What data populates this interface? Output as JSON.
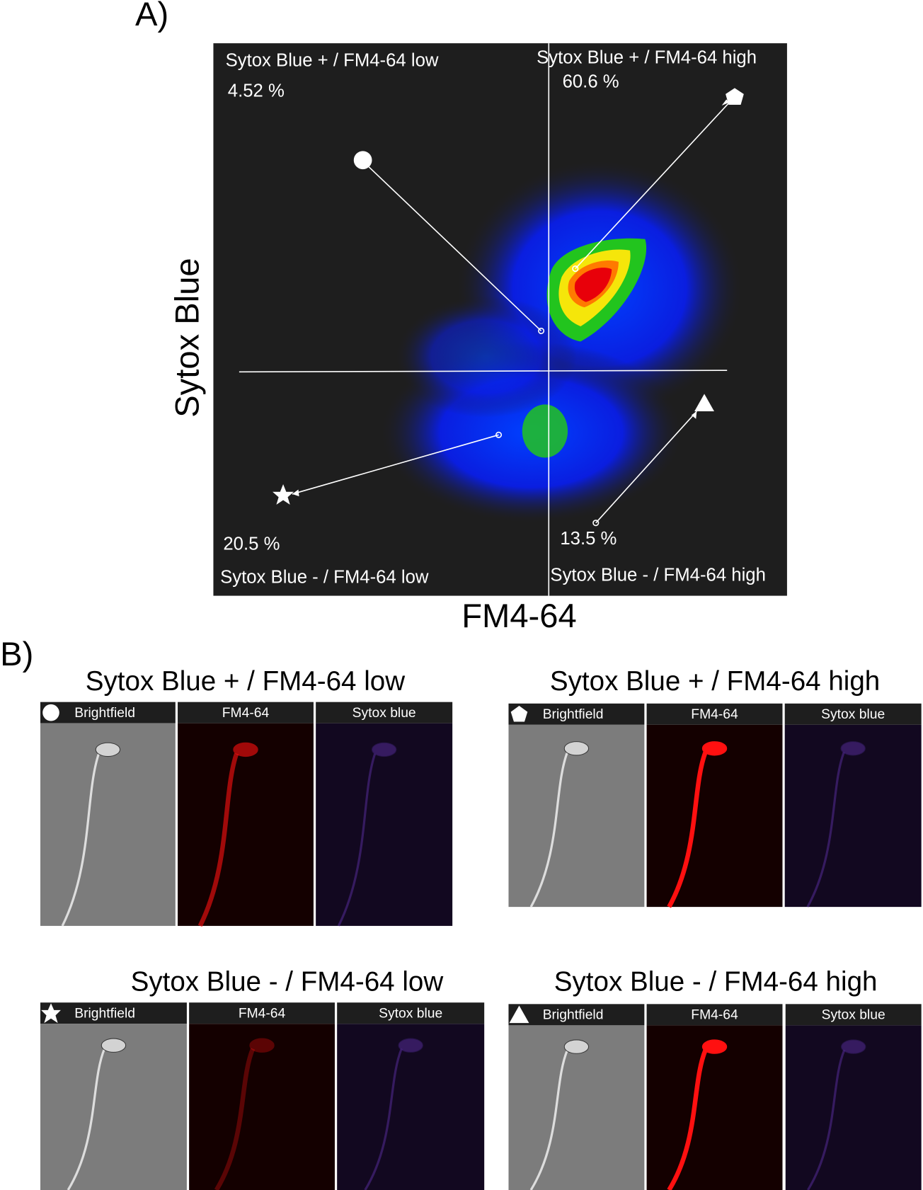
{
  "panel_a": {
    "label": "A)",
    "x_axis": "FM4-64",
    "y_axis": "Sytox Blue",
    "quadrants": [
      {
        "name": "Sytox Blue + / FM4-64 low",
        "percent": "4.52 %"
      },
      {
        "name": "Sytox Blue + / FM4-64 high",
        "percent": "60.6 %"
      },
      {
        "name": "Sytox Blue - / FM4-64 low",
        "percent": "20.5 %"
      },
      {
        "name": "Sytox Blue - / FM4-64 high",
        "percent": "13.5 %"
      }
    ]
  },
  "panel_b": {
    "label": "B)",
    "groups": [
      {
        "title": "Sytox Blue + / FM4-64 low",
        "images": [
          "Brightfield",
          "FM4-64",
          "Sytox blue"
        ]
      },
      {
        "title": "Sytox Blue + / FM4-64 high",
        "images": [
          "Brightfield",
          "FM4-64",
          "Sytox blue"
        ]
      },
      {
        "title": "Sytox Blue - / FM4-64 low",
        "images": [
          "Brightfield",
          "FM4-64",
          "Sytox blue"
        ]
      },
      {
        "title": "Sytox Blue - / FM4-64 high",
        "images": [
          "Brightfield",
          "FM4-64",
          "Sytox blue"
        ]
      }
    ]
  }
}
